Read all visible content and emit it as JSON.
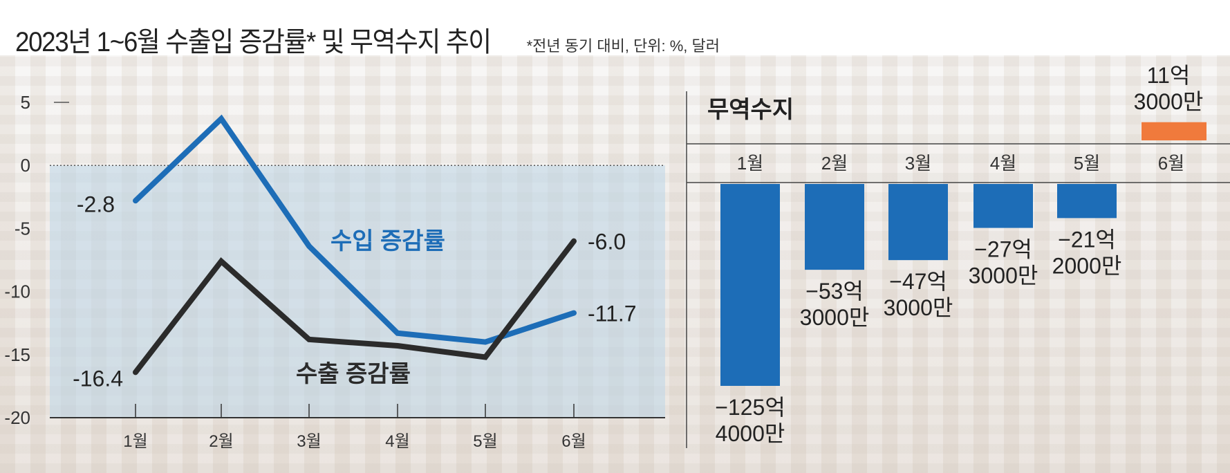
{
  "header": {
    "title": "2023년 1~6월 수출입 증감률* 및 무역수지 추이",
    "note": "*전년 동기 대비, 단위: %, 달러"
  },
  "colors": {
    "import": "#1d6db7",
    "export": "#2b2b2b",
    "deficit": "#1d6db7",
    "surplus": "#f07a3c",
    "shade": "#bcd6e8"
  },
  "chart_data": [
    {
      "type": "line",
      "title": "수출입 증감률",
      "categories": [
        "1월",
        "2월",
        "3월",
        "4월",
        "5월",
        "6월"
      ],
      "yticks": [
        "5",
        "0",
        "-5",
        "-10",
        "-15",
        "-20"
      ],
      "ylim": [
        -20,
        5
      ],
      "series": [
        {
          "name": "수입 증감률",
          "values": [
            -2.8,
            3.7,
            -6.4,
            -13.3,
            -14.0,
            -11.7
          ],
          "labels": [
            "-2.8",
            "",
            "",
            "",
            "",
            "-11.7"
          ]
        },
        {
          "name": "수출 증감률",
          "values": [
            -16.4,
            -7.6,
            -13.8,
            -14.3,
            -15.2,
            -6.0
          ],
          "labels": [
            "-16.4",
            "",
            "",
            "",
            "",
            "-6.0"
          ]
        }
      ]
    },
    {
      "type": "bar",
      "title": "무역수지",
      "categories": [
        "1월",
        "2월",
        "3월",
        "4월",
        "5월",
        "6월"
      ],
      "values": [
        -125.4,
        -53.3,
        -47.3,
        -27.3,
        -21.2,
        11.3
      ],
      "labels": [
        [
          "−125억",
          "4000만"
        ],
        [
          "−53억",
          "3000만"
        ],
        [
          "−47억",
          "3000만"
        ],
        [
          "−27억",
          "3000만"
        ],
        [
          "−21억",
          "2000만"
        ],
        [
          "11억",
          "3000만"
        ]
      ]
    }
  ]
}
